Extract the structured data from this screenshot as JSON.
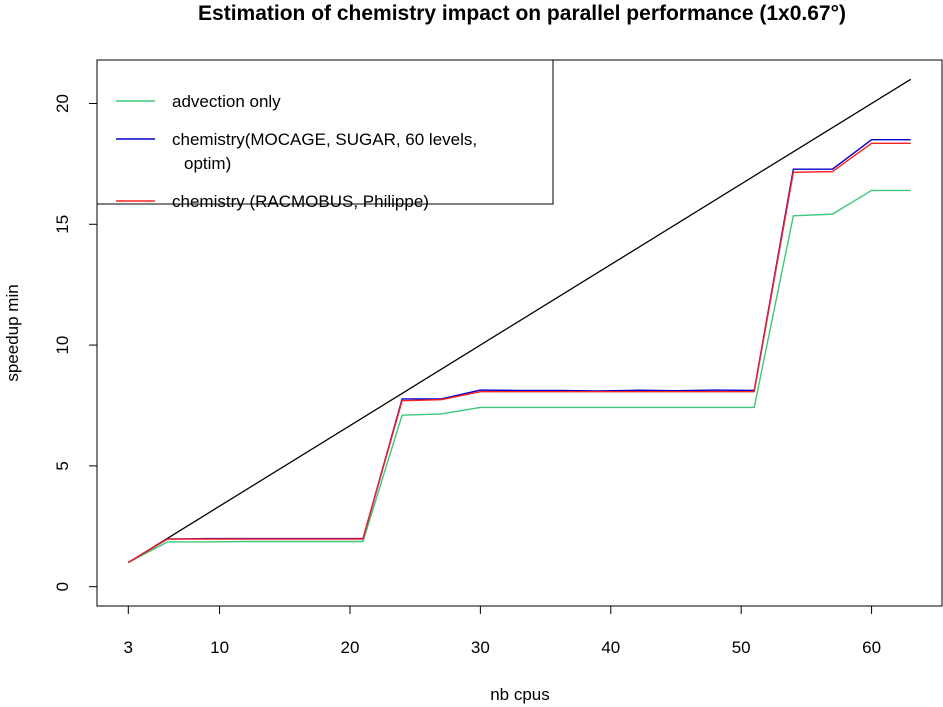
{
  "chart_data": {
    "type": "line",
    "title": "Estimation of chemistry impact on parallel performance (1x0.67°)",
    "xlabel": "nb cpus",
    "ylabel": "speedup min",
    "xlim": [
      0.6,
      65.4
    ],
    "ylim": [
      -0.8,
      21.8
    ],
    "xticks": [
      3,
      10,
      20,
      30,
      40,
      50,
      60
    ],
    "yticks": [
      0,
      5,
      10,
      15,
      20
    ],
    "legend_position": "top-left",
    "reference_line": {
      "x": [
        3,
        63
      ],
      "y": [
        1,
        21
      ],
      "color": "#000000"
    },
    "series": [
      {
        "name": "advection only",
        "legend_lines": [
          "advection only"
        ],
        "color": "#3cc87a",
        "x": [
          3,
          6,
          9,
          12,
          15,
          18,
          21,
          24,
          27,
          30,
          33,
          36,
          39,
          42,
          45,
          48,
          51,
          54,
          57,
          60,
          63
        ],
        "y": [
          1.0,
          1.85,
          1.85,
          1.87,
          1.87,
          1.87,
          1.87,
          7.1,
          7.15,
          7.42,
          7.42,
          7.42,
          7.42,
          7.42,
          7.42,
          7.42,
          7.42,
          15.35,
          15.42,
          16.4,
          16.4
        ]
      },
      {
        "name": "chemistry(MOCAGE, SUGAR, 60 levels, optim)",
        "legend_lines": [
          "chemistry(MOCAGE, SUGAR, 60 levels,",
          "optim)"
        ],
        "color": "#0000cc",
        "x": [
          3,
          6,
          9,
          12,
          15,
          18,
          21,
          24,
          27,
          30,
          33,
          36,
          39,
          42,
          45,
          48,
          51,
          54,
          57,
          60,
          63
        ],
        "y": [
          1.0,
          1.97,
          1.99,
          1.99,
          1.99,
          1.99,
          1.99,
          7.77,
          7.77,
          8.14,
          8.12,
          8.12,
          8.1,
          8.13,
          8.11,
          8.14,
          8.12,
          17.28,
          17.28,
          18.5,
          18.5
        ]
      },
      {
        "name": "chemistry (RACMOBUS, Philippe)",
        "legend_lines": [
          "chemistry (RACMOBUS, Philippe)"
        ],
        "color": "#ff2020",
        "x": [
          3,
          6,
          9,
          12,
          15,
          18,
          21,
          24,
          27,
          30,
          33,
          36,
          39,
          42,
          45,
          48,
          51,
          54,
          57,
          60,
          63
        ],
        "y": [
          1.0,
          1.97,
          1.97,
          1.97,
          1.97,
          1.97,
          1.97,
          7.7,
          7.74,
          8.07,
          8.07,
          8.07,
          8.07,
          8.07,
          8.07,
          8.07,
          8.07,
          17.15,
          17.18,
          18.35,
          18.35
        ]
      }
    ]
  }
}
